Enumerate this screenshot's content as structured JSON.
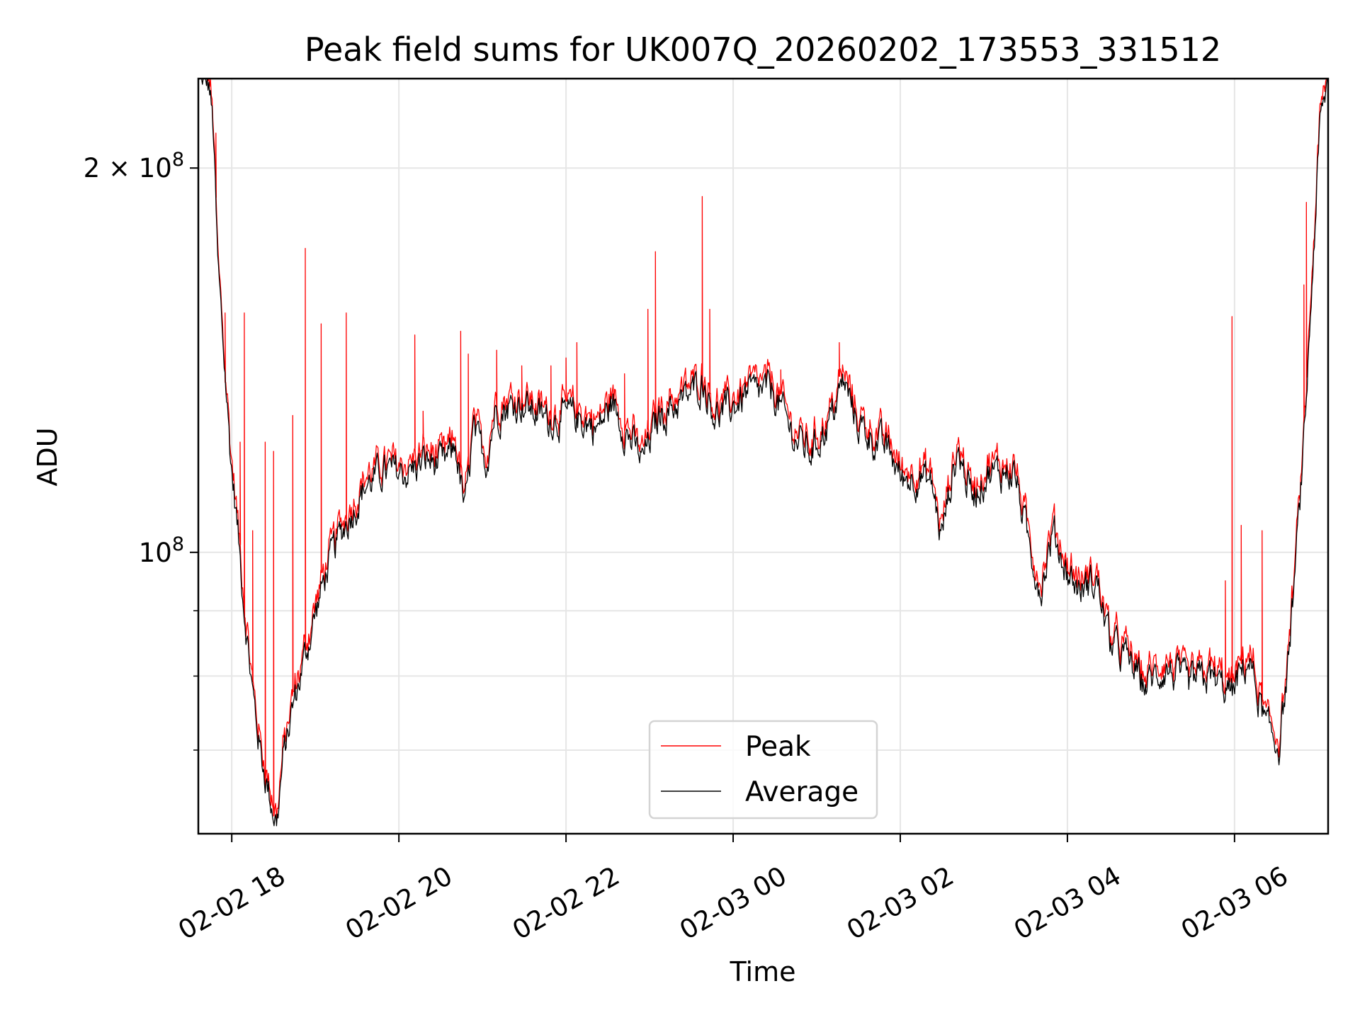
{
  "chart_data": {
    "type": "line",
    "title": "Peak field sums for UK007Q_20260202_173553_331512",
    "xlabel": "Time",
    "ylabel": "ADU",
    "yscale": "log",
    "ylim": [
      60200000,
      235000000
    ],
    "x_unit": "hours since 2026-02-02 00:00",
    "xlim": [
      17.6,
      31.12
    ],
    "grid": true,
    "legend_position": "lower-center",
    "xticks": [
      {
        "value": 18,
        "label": "02-02 18"
      },
      {
        "value": 20,
        "label": "02-02 20"
      },
      {
        "value": 22,
        "label": "02-02 22"
      },
      {
        "value": 24,
        "label": "02-03 00"
      },
      {
        "value": 26,
        "label": "02-03 02"
      },
      {
        "value": 28,
        "label": "02-03 04"
      },
      {
        "value": 30,
        "label": "02-03 06"
      }
    ],
    "yticks_major": [
      {
        "value": 100000000,
        "base": "10",
        "exp": "8",
        "mant": ""
      },
      {
        "value": 200000000,
        "base": "10",
        "exp": "8",
        "mant": "2 × "
      }
    ],
    "yticks_minor": [
      70000000,
      80000000,
      90000000
    ],
    "series": [
      {
        "name": "Average",
        "color": "#000000",
        "x": [
          17.62,
          17.73,
          17.78,
          17.83,
          17.92,
          17.99,
          18.06,
          18.15,
          18.25,
          18.35,
          18.46,
          18.54,
          18.61,
          18.72,
          18.82,
          18.97,
          19.13,
          19.28,
          19.44,
          19.6,
          19.8,
          20.11,
          20.32,
          20.53,
          20.68,
          20.79,
          20.89,
          21.05,
          21.15,
          21.46,
          21.77,
          22.08,
          22.39,
          22.55,
          22.7,
          22.91,
          23.12,
          23.43,
          23.64,
          23.79,
          24.0,
          24.16,
          24.47,
          24.73,
          24.93,
          25.14,
          25.32,
          25.5,
          25.71,
          25.87,
          26.02,
          26.23,
          26.38,
          26.49,
          26.59,
          26.69,
          26.85,
          27.06,
          27.37,
          27.52,
          27.68,
          27.83,
          27.99,
          28.15,
          28.35,
          28.51,
          28.72,
          28.92,
          29.18,
          29.44,
          29.7,
          29.96,
          30.17,
          30.38,
          30.53,
          30.63,
          30.74,
          30.84,
          30.94,
          31.02,
          31.11
        ],
        "y": [
          235000000.0,
          232000000.0,
          214000000.0,
          169000000.0,
          138000000.0,
          118000000.0,
          106000000.0,
          90600000.0,
          77500000.0,
          69400000.0,
          64200000.0,
          61300000.0,
          68400000.0,
          75100000.0,
          80000000.0,
          87800000.0,
          96500000.0,
          102700000.0,
          107600000.0,
          112800000.0,
          115500000.0,
          115500000.0,
          118000000.0,
          117000000.0,
          121000000.0,
          107600000.0,
          124000000.0,
          118000000.0,
          129000000.0,
          131000000.0,
          127000000.0,
          128000000.0,
          125000000.0,
          131000000.0,
          125000000.0,
          118000000.0,
          128000000.0,
          132000000.0,
          136000000.0,
          128000000.0,
          130000000.0,
          133000000.0,
          134000000.0,
          123000000.0,
          120000000.0,
          126000000.0,
          136000000.0,
          126000000.0,
          122000000.0,
          120000000.0,
          114000000.0,
          115000000.0,
          113000000.0,
          102700000.0,
          112000000.0,
          120000000.0,
          111000000.0,
          115500000.0,
          115500000.0,
          102700000.0,
          93500000.0,
          104000000.0,
          96500000.0,
          93500000.0,
          95000000.0,
          85000000.0,
          82500000.0,
          78700000.0,
          81200000.0,
          78700000.0,
          80000000.0,
          77500000.0,
          82500000.0,
          72800000.0,
          70600000.0,
          80000000.0,
          99500000.0,
          124000000.0,
          169000000.0,
          214000000.0,
          233000000.0
        ]
      },
      {
        "name": "Peak",
        "color": "#ff0000",
        "description_of_values": "tracks Average slightly above, with spikes",
        "spikes": {
          "x": [
            17.81,
            17.92,
            18.1,
            18.15,
            18.25,
            18.4,
            18.5,
            18.73,
            18.88,
            19.07,
            19.37,
            20.19,
            20.29,
            20.74,
            20.83,
            21.17,
            21.47,
            21.82,
            22.0,
            22.13,
            22.7,
            22.98,
            23.07,
            23.63,
            23.72,
            24.57,
            25.27,
            29.89,
            29.97,
            30.08,
            30.33,
            30.83,
            30.86
          ],
          "y": [
            213000000.0,
            154000000.0,
            122000000.0,
            154000000.0,
            104000000.0,
            122000000.0,
            120000000.0,
            128000000.0,
            173000000.0,
            151000000.0,
            154000000.0,
            148000000.0,
            129000000.0,
            149000000.0,
            143000000.0,
            144000000.0,
            140000000.0,
            140000000.0,
            142000000.0,
            146000000.0,
            138000000.0,
            155000000.0,
            172000000.0,
            190000000.0,
            155000000.0,
            139000000.0,
            146000000.0,
            95000000.0,
            153000000.0,
            105000000.0,
            104000000.0,
            162000000.0,
            188000000.0
          ]
        }
      }
    ],
    "legend": [
      "Peak",
      "Average"
    ]
  }
}
